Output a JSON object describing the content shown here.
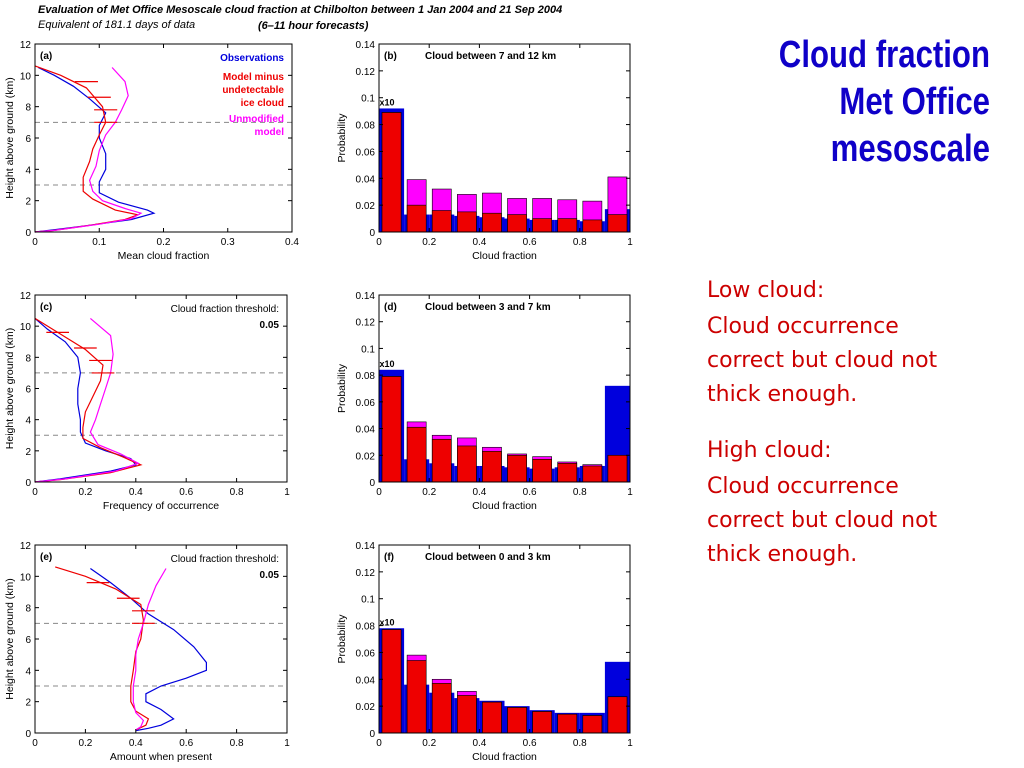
{
  "header": {
    "line1": "Evaluation of Met Office Mesoscale cloud fraction at Chilbolton between 1 Jan 2004 and 21 Sep 2004",
    "line2": "Equivalent of 181.1 days of data",
    "line3": "(6–11 hour forecasts)"
  },
  "slide_title": [
    "Cloud fraction",
    "Met Office",
    "mesoscale"
  ],
  "notes": {
    "low_head": "Low cloud:",
    "low_body": [
      "Cloud occurrence",
      "correct but cloud not",
      "thick enough."
    ],
    "high_head": "High cloud:",
    "high_body": [
      "Cloud occurrence",
      "correct but cloud not",
      "thick enough."
    ]
  },
  "colors": {
    "obs": "#0000dd",
    "model": "#ee0000",
    "unmod": "#ff00ff",
    "title": "#0f00c8",
    "note": "#cc0000"
  },
  "chart_data": [
    {
      "type": "line",
      "panel": "(a)",
      "xlabel": "Mean cloud fraction",
      "ylabel": "Height above ground (km)",
      "xlim": [
        0,
        0.4
      ],
      "ylim": [
        0,
        12
      ],
      "xticks": [
        0,
        0.1,
        0.2,
        0.3,
        0.4
      ],
      "xticklabels": [
        "0",
        "0.1",
        "0.2",
        "0.3",
        "0.4"
      ],
      "yticks": [
        0,
        2,
        4,
        6,
        8,
        10,
        12
      ],
      "dashed_lines_y": [
        3,
        7
      ],
      "legend": [
        {
          "text": [
            "Observations"
          ],
          "color": "#0000dd"
        },
        {
          "text": [
            "Model minus",
            "undetectable",
            "ice cloud"
          ],
          "color": "#ee0000"
        },
        {
          "text": [
            "Unmodified",
            "model"
          ],
          "color": "#ff00ff"
        }
      ],
      "series": [
        {
          "name": "Observations",
          "color": "#0000dd",
          "points": [
            [
              0.005,
              10.5
            ],
            [
              0.03,
              10
            ],
            [
              0.06,
              9.3
            ],
            [
              0.085,
              8.5
            ],
            [
              0.11,
              7.6
            ],
            [
              0.1,
              6.8
            ],
            [
              0.1,
              6
            ],
            [
              0.11,
              5
            ],
            [
              0.11,
              4
            ],
            [
              0.1,
              3.2
            ],
            [
              0.1,
              2.5
            ],
            [
              0.13,
              1.9
            ],
            [
              0.175,
              1.4
            ],
            [
              0.185,
              1.2
            ],
            [
              0.15,
              0.8
            ],
            [
              0.08,
              0.4
            ],
            [
              0.03,
              0.15
            ],
            [
              0.0,
              0
            ]
          ]
        },
        {
          "name": "Model minus undetectable ice cloud",
          "color": "#ee0000",
          "points": [
            [
              0.0,
              10.6
            ],
            [
              0.04,
              10
            ],
            [
              0.08,
              9.2
            ],
            [
              0.105,
              8
            ],
            [
              0.11,
              7
            ],
            [
              0.1,
              6.2
            ],
            [
              0.09,
              5.3
            ],
            [
              0.085,
              4.5
            ],
            [
              0.075,
              3.5
            ],
            [
              0.075,
              2.6
            ],
            [
              0.09,
              2.1
            ],
            [
              0.125,
              1.4
            ],
            [
              0.16,
              1.1
            ],
            [
              0.14,
              0.8
            ],
            [
              0.09,
              0.45
            ],
            [
              0.03,
              0.1
            ],
            [
              0.0,
              0
            ]
          ]
        },
        {
          "name": "Unmodified model",
          "color": "#ff00ff",
          "points": [
            [
              0.12,
              10.5
            ],
            [
              0.14,
              9.6
            ],
            [
              0.145,
              8.7
            ],
            [
              0.135,
              7.8
            ],
            [
              0.125,
              7
            ],
            [
              0.11,
              6.2
            ],
            [
              0.1,
              5.2
            ],
            [
              0.095,
              4.2
            ],
            [
              0.085,
              3.3
            ],
            [
              0.09,
              2.6
            ],
            [
              0.105,
              2
            ],
            [
              0.14,
              1.5
            ],
            [
              0.165,
              1.2
            ],
            [
              0.15,
              0.85
            ],
            [
              0.1,
              0.5
            ],
            [
              0.03,
              0.1
            ],
            [
              0.0,
              0
            ]
          ]
        }
      ],
      "error_bars_y": [
        9.6,
        8.6,
        7.8,
        7.0
      ],
      "error_bars_x": [
        0.08,
        0.1,
        0.11,
        0.11
      ]
    },
    {
      "type": "bar",
      "panel": "(b)",
      "title": "Cloud between 7 and 12 km",
      "xlabel": "Cloud fraction",
      "ylabel": "Probability",
      "xlim": [
        0,
        1
      ],
      "ylim": [
        0,
        0.14
      ],
      "xticks": [
        0,
        0.2,
        0.4,
        0.6,
        0.8,
        1
      ],
      "xticklabels": [
        "0",
        "0.2",
        "0.4",
        "0.6",
        "0.8",
        "1"
      ],
      "yticks": [
        0,
        0.02,
        0.04,
        0.06,
        0.08,
        0.1,
        0.12,
        0.14
      ],
      "yticklabels": [
        "0",
        "0.02",
        "0.04",
        "0.06",
        "0.08",
        "0.1",
        "0.12",
        "0.14"
      ],
      "first_bin_note": "x10",
      "series": [
        {
          "name": "Observations",
          "color": "#0000dd",
          "values": [
            0.092,
            0.013,
            0.013,
            0.012,
            0.011,
            0.01,
            0.009,
            0.009,
            0.008,
            0.017
          ]
        },
        {
          "name": "Unmodified model",
          "color": "#ff00ff",
          "values": [
            0.089,
            0.039,
            0.032,
            0.028,
            0.029,
            0.025,
            0.025,
            0.024,
            0.023,
            0.041
          ]
        },
        {
          "name": "Model minus undetectable ice cloud",
          "color": "#ee0000",
          "values": [
            0.089,
            0.02,
            0.016,
            0.015,
            0.014,
            0.013,
            0.01,
            0.01,
            0.009,
            0.013
          ]
        }
      ]
    },
    {
      "type": "line",
      "panel": "(c)",
      "xlabel": "Frequency of occurrence",
      "ylabel": "Height above ground (km)",
      "xlim": [
        0,
        1
      ],
      "ylim": [
        0,
        12
      ],
      "xticks": [
        0,
        0.2,
        0.4,
        0.6,
        0.8,
        1
      ],
      "xticklabels": [
        "0",
        "0.2",
        "0.4",
        "0.6",
        "0.8",
        "1"
      ],
      "yticks": [
        0,
        2,
        4,
        6,
        8,
        10,
        12
      ],
      "dashed_lines_y": [
        3,
        7
      ],
      "legend": [
        {
          "text": [
            "Cloud fraction threshold:"
          ],
          "color": "#000000"
        },
        {
          "text": [
            "0.05"
          ],
          "color": "#000000",
          "bold": true
        }
      ],
      "series": [
        {
          "name": "Observations",
          "color": "#0000dd",
          "points": [
            [
              0.0,
              10.5
            ],
            [
              0.05,
              9.8
            ],
            [
              0.12,
              9
            ],
            [
              0.17,
              8
            ],
            [
              0.18,
              7
            ],
            [
              0.17,
              6
            ],
            [
              0.17,
              5
            ],
            [
              0.18,
              4
            ],
            [
              0.18,
              3.2
            ],
            [
              0.2,
              2.5
            ],
            [
              0.28,
              2
            ],
            [
              0.38,
              1.5
            ],
            [
              0.4,
              1.1
            ],
            [
              0.3,
              0.7
            ],
            [
              0.1,
              0.2
            ],
            [
              0.0,
              0
            ]
          ]
        },
        {
          "name": "Model minus undetectable ice cloud",
          "color": "#ee0000",
          "points": [
            [
              0.0,
              10.5
            ],
            [
              0.09,
              9.6
            ],
            [
              0.2,
              8.5
            ],
            [
              0.27,
              7.5
            ],
            [
              0.26,
              6.5
            ],
            [
              0.23,
              5.5
            ],
            [
              0.2,
              4.5
            ],
            [
              0.19,
              3.5
            ],
            [
              0.19,
              2.8
            ],
            [
              0.26,
              2.2
            ],
            [
              0.35,
              1.6
            ],
            [
              0.42,
              1.1
            ],
            [
              0.3,
              0.6
            ],
            [
              0.1,
              0.15
            ],
            [
              0.0,
              0
            ]
          ]
        },
        {
          "name": "Unmodified model",
          "color": "#ff00ff",
          "points": [
            [
              0.22,
              10.5
            ],
            [
              0.3,
              9.4
            ],
            [
              0.31,
              8.2
            ],
            [
              0.3,
              7
            ],
            [
              0.28,
              6
            ],
            [
              0.26,
              5
            ],
            [
              0.24,
              4
            ],
            [
              0.22,
              3.2
            ],
            [
              0.25,
              2.4
            ],
            [
              0.34,
              1.8
            ],
            [
              0.41,
              1.2
            ],
            [
              0.32,
              0.7
            ],
            [
              0.12,
              0.2
            ],
            [
              0.0,
              0
            ]
          ]
        }
      ],
      "error_bars_y": [
        9.6,
        8.6,
        7.8,
        7.0
      ],
      "error_bars_x": [
        0.09,
        0.2,
        0.26,
        0.27
      ]
    },
    {
      "type": "bar",
      "panel": "(d)",
      "title": "Cloud between 3 and 7 km",
      "xlabel": "Cloud fraction",
      "ylabel": "Probability",
      "xlim": [
        0,
        1
      ],
      "ylim": [
        0,
        0.14
      ],
      "xticks": [
        0,
        0.2,
        0.4,
        0.6,
        0.8,
        1
      ],
      "xticklabels": [
        "0",
        "0.2",
        "0.4",
        "0.6",
        "0.8",
        "1"
      ],
      "yticks": [
        0,
        0.02,
        0.04,
        0.06,
        0.08,
        0.1,
        0.12,
        0.14
      ],
      "yticklabels": [
        "0",
        "0.02",
        "0.04",
        "0.06",
        "0.08",
        "0.1",
        "0.12",
        "0.14"
      ],
      "first_bin_note": "x10",
      "series": [
        {
          "name": "Observations",
          "color": "#0000dd",
          "values": [
            0.084,
            0.017,
            0.014,
            0.012,
            0.012,
            0.011,
            0.01,
            0.011,
            0.012,
            0.072
          ]
        },
        {
          "name": "Unmodified model",
          "color": "#ff00ff",
          "values": [
            0.079,
            0.045,
            0.035,
            0.033,
            0.026,
            0.021,
            0.019,
            0.015,
            0.013,
            0.02
          ]
        },
        {
          "name": "Model minus undetectable ice cloud",
          "color": "#ee0000",
          "values": [
            0.079,
            0.041,
            0.032,
            0.027,
            0.023,
            0.02,
            0.017,
            0.014,
            0.012,
            0.02
          ]
        }
      ]
    },
    {
      "type": "line",
      "panel": "(e)",
      "xlabel": "Amount when present",
      "ylabel": "Height above ground (km)",
      "xlim": [
        0,
        1
      ],
      "ylim": [
        0,
        12
      ],
      "xticks": [
        0,
        0.2,
        0.4,
        0.6,
        0.8,
        1
      ],
      "xticklabels": [
        "0",
        "0.2",
        "0.4",
        "0.6",
        "0.8",
        "1"
      ],
      "yticks": [
        0,
        2,
        4,
        6,
        8,
        10,
        12
      ],
      "dashed_lines_y": [
        3,
        7
      ],
      "legend": [
        {
          "text": [
            "Cloud fraction threshold:"
          ],
          "color": "#000000"
        },
        {
          "text": [
            "0.05"
          ],
          "color": "#000000",
          "bold": true
        }
      ],
      "series": [
        {
          "name": "Observations",
          "color": "#0000dd",
          "points": [
            [
              0.22,
              10.5
            ],
            [
              0.3,
              9.6
            ],
            [
              0.38,
              8.6
            ],
            [
              0.45,
              7.6
            ],
            [
              0.55,
              6.6
            ],
            [
              0.63,
              5.5
            ],
            [
              0.68,
              4.5
            ],
            [
              0.68,
              4
            ],
            [
              0.6,
              3.5
            ],
            [
              0.5,
              3
            ],
            [
              0.44,
              2.5
            ],
            [
              0.44,
              2
            ],
            [
              0.5,
              1.5
            ],
            [
              0.55,
              0.9
            ],
            [
              0.5,
              0.5
            ],
            [
              0.45,
              0.3
            ],
            [
              0.4,
              0.15
            ]
          ]
        },
        {
          "name": "Model minus undetectable ice cloud",
          "color": "#ee0000",
          "points": [
            [
              0.08,
              10.6
            ],
            [
              0.2,
              10
            ],
            [
              0.32,
              9.2
            ],
            [
              0.42,
              8.2
            ],
            [
              0.43,
              7.2
            ],
            [
              0.42,
              6
            ],
            [
              0.4,
              5.2
            ],
            [
              0.39,
              4
            ],
            [
              0.38,
              3
            ],
            [
              0.38,
              2
            ],
            [
              0.4,
              1.4
            ],
            [
              0.45,
              0.9
            ],
            [
              0.44,
              0.5
            ],
            [
              0.4,
              0.2
            ]
          ]
        },
        {
          "name": "Unmodified model",
          "color": "#ff00ff",
          "points": [
            [
              0.52,
              10.5
            ],
            [
              0.48,
              9.4
            ],
            [
              0.45,
              8.2
            ],
            [
              0.43,
              7
            ],
            [
              0.41,
              6
            ],
            [
              0.4,
              5
            ],
            [
              0.4,
              4
            ],
            [
              0.39,
              3
            ],
            [
              0.39,
              2
            ],
            [
              0.4,
              1.3
            ],
            [
              0.43,
              0.8
            ],
            [
              0.42,
              0.4
            ],
            [
              0.4,
              0.2
            ]
          ]
        }
      ],
      "error_bars_y": [
        9.6,
        8.6,
        7.8,
        7.0
      ],
      "error_bars_x": [
        0.25,
        0.37,
        0.43,
        0.43
      ]
    },
    {
      "type": "bar",
      "panel": "(f)",
      "title": "Cloud between 0 and 3 km",
      "xlabel": "Cloud fraction",
      "ylabel": "Probability",
      "xlim": [
        0,
        1
      ],
      "ylim": [
        0,
        0.14
      ],
      "xticks": [
        0,
        0.2,
        0.4,
        0.6,
        0.8,
        1
      ],
      "xticklabels": [
        "0",
        "0.2",
        "0.4",
        "0.6",
        "0.8",
        "1"
      ],
      "yticks": [
        0,
        0.02,
        0.04,
        0.06,
        0.08,
        0.1,
        0.12,
        0.14
      ],
      "yticklabels": [
        "0",
        "0.02",
        "0.04",
        "0.06",
        "0.08",
        "0.1",
        "0.12",
        "0.14"
      ],
      "first_bin_note": "x10",
      "series": [
        {
          "name": "Observations",
          "color": "#0000dd",
          "values": [
            0.078,
            0.036,
            0.03,
            0.026,
            0.024,
            0.02,
            0.017,
            0.015,
            0.015,
            0.053
          ]
        },
        {
          "name": "Unmodified model",
          "color": "#ff00ff",
          "values": [
            0.077,
            0.058,
            0.04,
            0.031,
            0.023,
            0.019,
            0.016,
            0.014,
            0.013,
            0.027
          ]
        },
        {
          "name": "Model minus undetectable ice cloud",
          "color": "#ee0000",
          "values": [
            0.077,
            0.054,
            0.037,
            0.028,
            0.023,
            0.019,
            0.016,
            0.014,
            0.013,
            0.027
          ]
        }
      ]
    }
  ]
}
